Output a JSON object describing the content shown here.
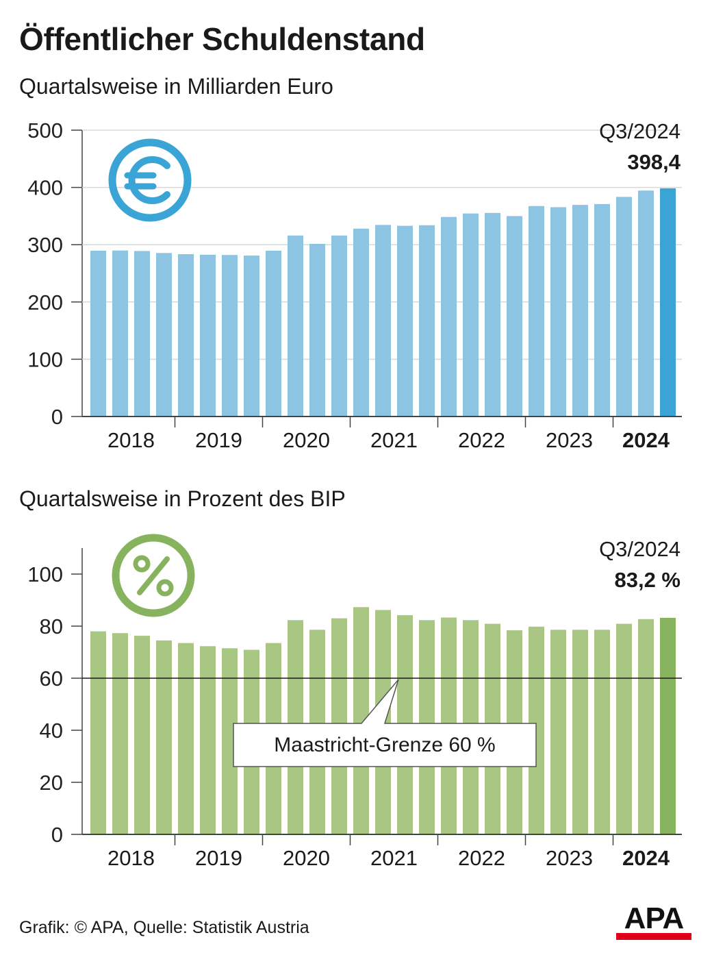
{
  "title": "Öffentlicher Schuldenstand",
  "footer": "Grafik: © APA, Quelle: Statistik Austria",
  "logo": "APA",
  "colors": {
    "blue_bar": "#8cc4e2",
    "blue_highlight": "#3ba4d6",
    "green_bar": "#a9c685",
    "green_highlight": "#88b35e",
    "logo_red": "#e0001a"
  },
  "chart_data": [
    {
      "type": "bar",
      "title": "Quartalsweise in Milliarden Euro",
      "icon": "euro-icon",
      "ylim": [
        0,
        500
      ],
      "yticks": [
        0,
        100,
        200,
        300,
        400,
        500
      ],
      "year_labels": [
        "2018",
        "2019",
        "2020",
        "2021",
        "2022",
        "2023",
        "2024"
      ],
      "values": [
        289.5,
        289.8,
        289.0,
        285.5,
        283.5,
        282.5,
        282.0,
        281.0,
        289.5,
        316.0,
        301.5,
        316.0,
        328.0,
        334.5,
        333.0,
        334.0,
        348.5,
        354.5,
        355.5,
        350.0,
        367.5,
        365.5,
        369.5,
        371.0,
        383.5,
        394.5,
        398.4
      ],
      "highlight": {
        "period": "Q3/2024",
        "value_label": "398,4"
      },
      "grid": true
    },
    {
      "type": "bar",
      "title": "Quartalsweise in Prozent des BIP",
      "icon": "percent-icon",
      "ylim": [
        0,
        110
      ],
      "yticks": [
        0,
        20,
        40,
        60,
        80,
        100
      ],
      "year_labels": [
        "2018",
        "2019",
        "2020",
        "2021",
        "2022",
        "2023",
        "2024"
      ],
      "values": [
        78.0,
        77.3,
        76.3,
        74.5,
        73.5,
        72.3,
        71.5,
        70.9,
        73.5,
        82.3,
        78.6,
        83.0,
        87.3,
        86.2,
        84.2,
        82.3,
        83.3,
        82.3,
        80.9,
        78.4,
        79.8,
        78.6,
        78.6,
        78.6,
        80.9,
        82.7,
        83.2
      ],
      "highlight": {
        "period": "Q3/2024",
        "value_label": "83,2 %"
      },
      "reference_line": {
        "value": 60,
        "label": "Maastricht-Grenze 60 %"
      },
      "grid": false
    }
  ]
}
